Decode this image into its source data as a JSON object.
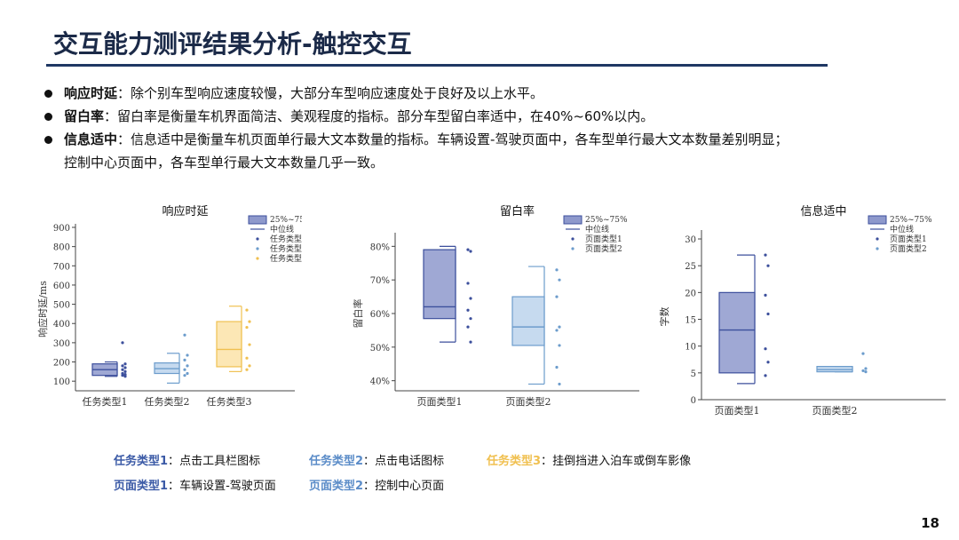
{
  "title": "交互能力测评结果分析-触控交互",
  "bullets": [
    {
      "key": "响应时延",
      "sep": "：",
      "text": "除个别车型响应速度较慢，大部分车型响应速度处于良好及以上水平。"
    },
    {
      "key": "留白率",
      "sep": "：",
      "text": "留白率是衡量车机界面简洁、美观程度的指标。部分车型留白率适中，在40%~60%以内。"
    },
    {
      "key": "信息适中",
      "sep": "：",
      "text": "信息适中是衡量车机页面单行最大文本数量的指标。车辆设置-驾驶页面中，各车型单行最大文本数量差别明显；"
    },
    {
      "key": "",
      "sep": "",
      "text": "控制中心页面中，各车型单行最大文本数量几乎一致。"
    }
  ],
  "chart_data": [
    {
      "type": "box",
      "title": "响应时延",
      "ylabel": "响应时延/ms",
      "ylim": [
        50,
        900
      ],
      "yticks": [
        "100",
        "200",
        "300",
        "400",
        "500",
        "600",
        "700",
        "800",
        "900"
      ],
      "categories": [
        "任务类型1",
        "任务类型2",
        "任务类型3"
      ],
      "boxes": [
        {
          "q1": 130,
          "median": 160,
          "q3": 190,
          "whisker_low": 125,
          "whisker_high": 200,
          "points": [
            300,
            190,
            180,
            170,
            160,
            150,
            140,
            135,
            130,
            125
          ],
          "color": "#3c4f9c",
          "fill": "#8e99cc"
        },
        {
          "q1": 140,
          "median": 165,
          "q3": 195,
          "whisker_low": 90,
          "whisker_high": 245,
          "points": [
            340,
            235,
            210,
            180,
            160,
            140,
            130
          ],
          "color": "#6c9ccc",
          "fill": "#bcd3ec"
        },
        {
          "q1": 175,
          "median": 265,
          "q3": 410,
          "whisker_low": 150,
          "whisker_high": 490,
          "points": [
            470,
            410,
            380,
            290,
            220,
            180,
            160
          ],
          "color": "#f0c050",
          "fill": "#fbe3a8"
        }
      ],
      "legend": [
        "25%~75%",
        "中位线",
        "任务类型1",
        "任务类型2",
        "任务类型3"
      ]
    },
    {
      "type": "box",
      "title": "留白率",
      "ylabel": "留白率",
      "ylim": [
        37,
        83
      ],
      "yticks": [
        "40%",
        "50%",
        "60%",
        "70%",
        "80%"
      ],
      "categories": [
        "页面类型1",
        "页面类型2"
      ],
      "boxes": [
        {
          "q1": 58.5,
          "median": 62,
          "q3": 79,
          "whisker_low": 51.5,
          "whisker_high": 80,
          "points": [
            79,
            78.5,
            69,
            64.5,
            61,
            58.5,
            56,
            51.5
          ],
          "color": "#3c4f9c",
          "fill": "#8e99cc"
        },
        {
          "q1": 50.5,
          "median": 56,
          "q3": 65,
          "whisker_low": 39,
          "whisker_high": 74,
          "points": [
            73,
            70,
            65,
            56,
            55,
            50.5,
            44,
            39
          ],
          "color": "#6c9ccc",
          "fill": "#bcd3ec"
        }
      ],
      "legend": [
        "25%~75%",
        "中位线",
        "页面类型1",
        "页面类型2"
      ]
    },
    {
      "type": "box",
      "title": "信息适中",
      "ylabel": "字数",
      "ylim": [
        0,
        31
      ],
      "yticks": [
        "0",
        "5",
        "10",
        "15",
        "20",
        "25",
        "30"
      ],
      "categories": [
        "页面类型1",
        "页面类型2"
      ],
      "boxes": [
        {
          "q1": 5,
          "median": 13,
          "q3": 20,
          "whisker_low": 3,
          "whisker_high": 27,
          "points": [
            27,
            25,
            19.5,
            16,
            9.5,
            7,
            4.5
          ],
          "color": "#3c4f9c",
          "fill": "#8e99cc"
        },
        {
          "q1": 5.2,
          "median": 5.6,
          "q3": 6.2,
          "whisker_low": 5.2,
          "whisker_high": 6.2,
          "points": [
            8.6,
            5.8,
            5.4,
            5.2
          ],
          "color": "#6c9ccc",
          "fill": "#bcd3ec"
        }
      ],
      "legend": [
        "25%~75%",
        "中位线",
        "页面类型1",
        "页面类型2"
      ]
    }
  ],
  "legend_notes": [
    [
      {
        "key": "任务类型1",
        "sep": "：",
        "text": "点击工具栏图标",
        "color": "#3b5aa6"
      },
      {
        "key": "任务类型2",
        "sep": "：",
        "text": "点击电话图标",
        "color": "#5b8cc8"
      },
      {
        "key": "任务类型3",
        "sep": "：",
        "text": "挂倒挡进入泊车或倒车影像",
        "color": "#f0c050"
      }
    ],
    [
      {
        "key": "页面类型1",
        "sep": "：",
        "text": "车辆设置-驾驶页面",
        "color": "#3b5aa6"
      },
      {
        "key": "页面类型2",
        "sep": "：",
        "text": "控制中心页面",
        "color": "#5b8cc8"
      }
    ]
  ],
  "page_number": "18",
  "colors": {
    "title": "#1b2a48",
    "rule": "#1f3864",
    "axis": "#444444"
  }
}
